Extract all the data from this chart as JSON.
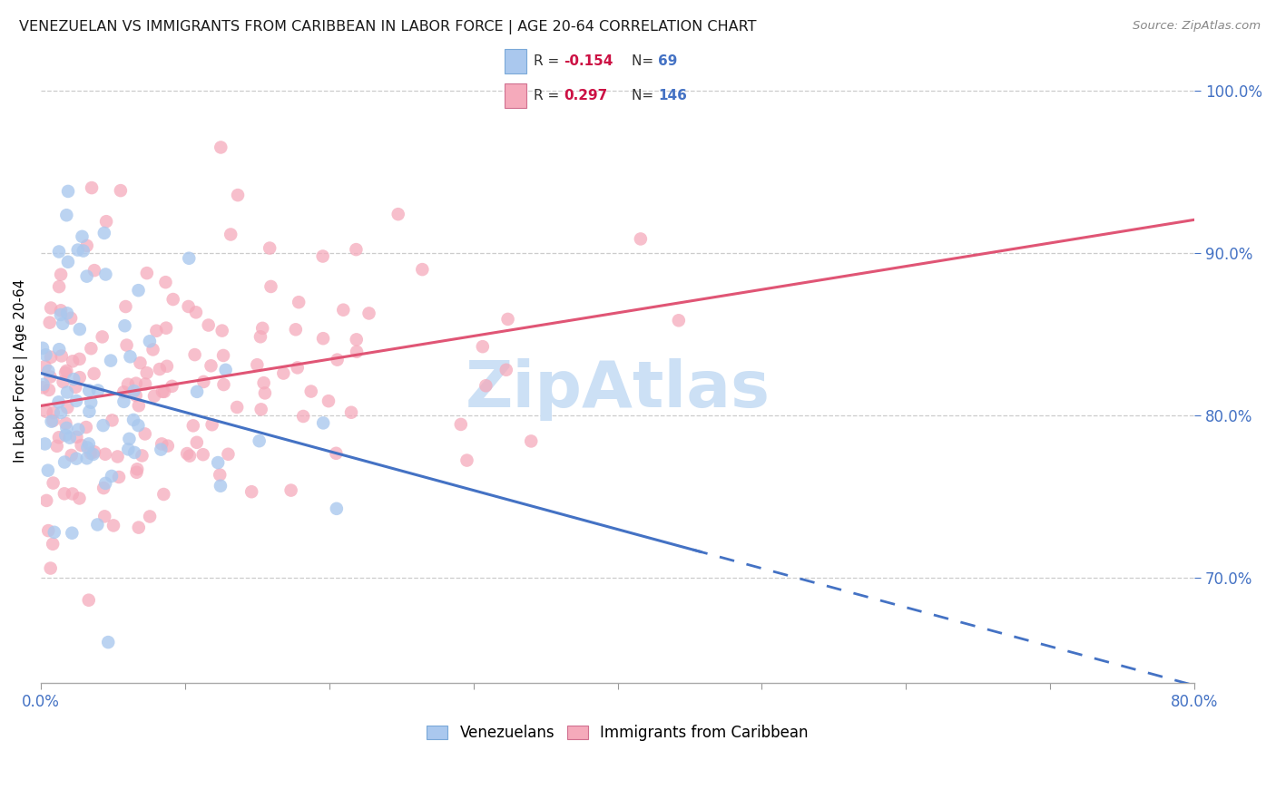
{
  "title": "VENEZUELAN VS IMMIGRANTS FROM CARIBBEAN IN LABOR FORCE | AGE 20-64 CORRELATION CHART",
  "source": "Source: ZipAtlas.com",
  "ylabel": "In Labor Force | Age 20-64",
  "xlim": [
    0.0,
    0.8
  ],
  "ylim": [
    0.635,
    1.02
  ],
  "ytick_vals_right": [
    0.7,
    0.8,
    0.9,
    1.0
  ],
  "blue_R": -0.154,
  "blue_N": 69,
  "pink_R": 0.297,
  "pink_N": 146,
  "blue_color": "#aac8ee",
  "pink_color": "#f5aabb",
  "blue_line_color": "#4472c4",
  "pink_line_color": "#e05575",
  "watermark": "ZipAtlas",
  "watermark_color": "#cce0f5",
  "background_color": "#ffffff",
  "grid_color": "#cccccc",
  "legend_bg": "#f9f9f9",
  "legend_border": "#cccccc",
  "axis_color": "#4472c4",
  "title_color": "#1a1a1a",
  "source_color": "#888888"
}
